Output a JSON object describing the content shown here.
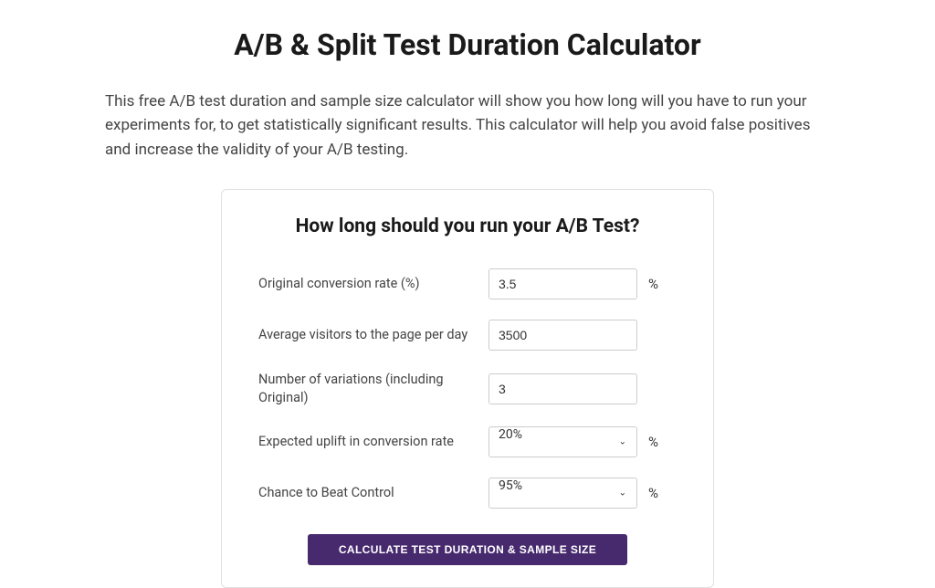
{
  "page": {
    "title": "A/B & Split Test Duration Calculator",
    "description": "This free A/B test duration and sample size calculator will show you how long will you have to run your experiments for, to get statistically significant results. This calculator will help you avoid false positives and increase the validity of your A/B testing."
  },
  "card": {
    "heading": "How long should you run your A/B Test?",
    "fields": {
      "conversion_rate": {
        "label": "Original conversion rate (%)",
        "value": "3.5",
        "unit": "%"
      },
      "visitors": {
        "label": "Average visitors to the page per day",
        "value": "3500"
      },
      "variations": {
        "label": "Number of variations (including Original)",
        "value": "3"
      },
      "uplift": {
        "label": "Expected uplift in conversion rate",
        "value": "20%",
        "unit": "%"
      },
      "confidence": {
        "label": "Chance to Beat Control",
        "value": "95%",
        "unit": "%"
      }
    },
    "button_label": "CALCULATE TEST DURATION & SAMPLE SIZE"
  },
  "colors": {
    "button_bg": "#472a6e",
    "text_primary": "#1a1a1a",
    "text_body": "#444444",
    "border": "#e0e0e0",
    "input_border": "#cccccc",
    "background": "#ffffff"
  }
}
